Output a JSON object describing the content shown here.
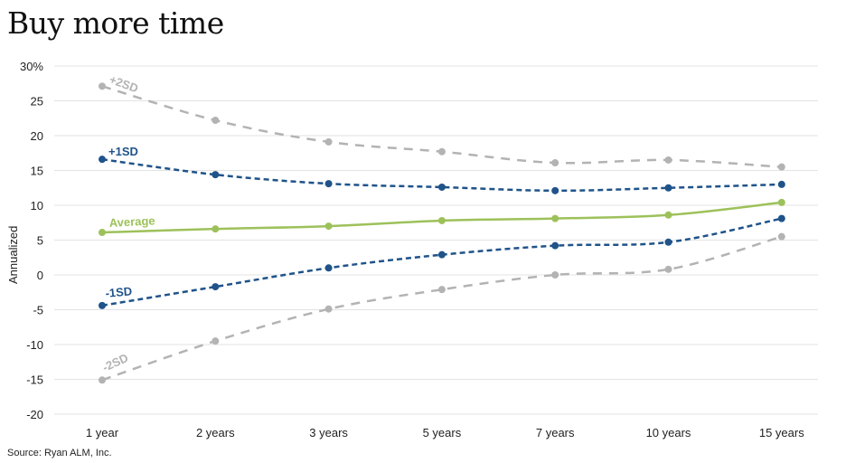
{
  "chart_data": {
    "type": "line",
    "title": "Buy more time",
    "ylabel": "Annualized",
    "xlabel": "",
    "source": "Source: Ryan ALM, Inc.",
    "categories": [
      "1 year",
      "2 years",
      "3 years",
      "5 years",
      "7 years",
      "10 years",
      "15 years"
    ],
    "ylim": [
      -20,
      30
    ],
    "yticks": [
      30,
      25,
      20,
      15,
      10,
      5,
      0,
      -5,
      -10,
      -15,
      -20
    ],
    "ytick_labels": [
      "30%",
      "25",
      "20",
      "15",
      "10",
      "5",
      "0",
      "-5",
      "-10",
      "-15",
      "-20"
    ],
    "grid": true,
    "series": [
      {
        "name": "+2SD",
        "color": "#b3b3b3",
        "dash": "long",
        "values": [
          27.1,
          22.2,
          19.1,
          17.7,
          16.1,
          16.5,
          15.5
        ]
      },
      {
        "name": "+1SD",
        "color": "#1f538a",
        "dash": "short",
        "values": [
          16.6,
          14.4,
          13.1,
          12.6,
          12.1,
          12.5,
          13.0
        ]
      },
      {
        "name": "Average",
        "color": "#9dc15a",
        "dash": "solid",
        "values": [
          6.1,
          6.6,
          7.0,
          7.8,
          8.1,
          8.6,
          10.4
        ]
      },
      {
        "name": "-1SD",
        "color": "#1f538a",
        "dash": "short",
        "values": [
          -4.4,
          -1.7,
          1.0,
          2.9,
          4.2,
          4.7,
          8.1
        ]
      },
      {
        "name": "-2SD",
        "color": "#b3b3b3",
        "dash": "long",
        "values": [
          -15.1,
          -9.5,
          -4.9,
          -2.1,
          0.0,
          0.8,
          5.5
        ]
      }
    ]
  }
}
